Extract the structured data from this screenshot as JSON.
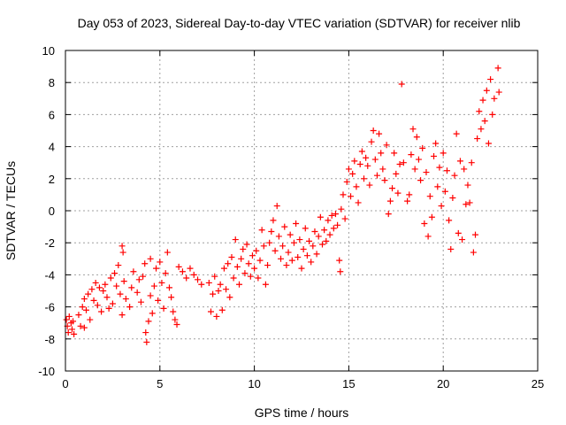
{
  "chart_data": {
    "type": "scatter",
    "title": "Day 053 of 2023, Sidereal Day-to-day VTEC variation (SDTVAR) for receiver nlib",
    "xlabel": "GPS time / hours",
    "ylabel": "SDTVAR / TECUs",
    "xlim": [
      0,
      25
    ],
    "ylim": [
      -10,
      10
    ],
    "xticks": [
      "0",
      "5",
      "10",
      "15",
      "20",
      "25"
    ],
    "yticks": [
      "-10",
      "-8",
      "-6",
      "-4",
      "-2",
      "0",
      "2",
      "4",
      "6",
      "8",
      "10"
    ],
    "grid": true,
    "marker": "plus",
    "colors": {
      "series": "#ff0000",
      "grid": "#a0a0a0",
      "axes": "#000000"
    },
    "series": [
      {
        "name": "SDTVAR",
        "points": [
          [
            0.05,
            -6.8
          ],
          [
            0.1,
            -7.2
          ],
          [
            0.15,
            -7.6
          ],
          [
            0.2,
            -6.6
          ],
          [
            0.3,
            -7.0
          ],
          [
            0.35,
            -7.4
          ],
          [
            0.4,
            -6.9
          ],
          [
            0.45,
            -7.7
          ],
          [
            0.7,
            -6.5
          ],
          [
            0.8,
            -7.2
          ],
          [
            0.9,
            -6.0
          ],
          [
            1.0,
            -5.5
          ],
          [
            1.0,
            -7.3
          ],
          [
            1.1,
            -6.2
          ],
          [
            1.2,
            -5.2
          ],
          [
            1.3,
            -6.8
          ],
          [
            1.4,
            -4.9
          ],
          [
            1.5,
            -5.6
          ],
          [
            1.6,
            -4.5
          ],
          [
            1.7,
            -5.9
          ],
          [
            1.8,
            -4.8
          ],
          [
            1.9,
            -6.3
          ],
          [
            2.0,
            -5.0
          ],
          [
            2.1,
            -4.6
          ],
          [
            2.2,
            -5.4
          ],
          [
            2.3,
            -6.1
          ],
          [
            2.4,
            -4.2
          ],
          [
            2.5,
            -5.8
          ],
          [
            2.6,
            -3.9
          ],
          [
            2.7,
            -4.7
          ],
          [
            2.8,
            -3.4
          ],
          [
            2.9,
            -5.2
          ],
          [
            3.0,
            -2.2
          ],
          [
            3.05,
            -2.6
          ],
          [
            3.0,
            -6.5
          ],
          [
            3.1,
            -4.4
          ],
          [
            3.2,
            -5.5
          ],
          [
            3.4,
            -6.0
          ],
          [
            3.5,
            -4.8
          ],
          [
            3.6,
            -3.8
          ],
          [
            3.8,
            -5.1
          ],
          [
            3.9,
            -4.3
          ],
          [
            4.0,
            -5.7
          ],
          [
            4.1,
            -4.1
          ],
          [
            4.2,
            -3.3
          ],
          [
            4.25,
            -7.6
          ],
          [
            4.3,
            -8.2
          ],
          [
            4.4,
            -6.9
          ],
          [
            4.5,
            -3.0
          ],
          [
            4.5,
            -5.3
          ],
          [
            4.6,
            -6.4
          ],
          [
            4.7,
            -4.7
          ],
          [
            4.8,
            -3.6
          ],
          [
            4.9,
            -5.6
          ],
          [
            5.0,
            -3.2
          ],
          [
            5.1,
            -4.5
          ],
          [
            5.2,
            -6.1
          ],
          [
            5.3,
            -3.9
          ],
          [
            5.4,
            -2.6
          ],
          [
            5.5,
            -4.8
          ],
          [
            5.6,
            -5.4
          ],
          [
            5.7,
            -6.3
          ],
          [
            5.8,
            -6.8
          ],
          [
            5.9,
            -7.1
          ],
          [
            6.0,
            -3.5
          ],
          [
            6.2,
            -3.8
          ],
          [
            6.4,
            -4.2
          ],
          [
            6.6,
            -3.6
          ],
          [
            6.8,
            -4.0
          ],
          [
            7.0,
            -4.3
          ],
          [
            7.2,
            -4.6
          ],
          [
            7.6,
            -4.5
          ],
          [
            7.7,
            -6.3
          ],
          [
            7.8,
            -5.2
          ],
          [
            7.9,
            -4.1
          ],
          [
            8.0,
            -6.6
          ],
          [
            8.1,
            -5.0
          ],
          [
            8.2,
            -4.6
          ],
          [
            8.3,
            -6.2
          ],
          [
            8.4,
            -3.6
          ],
          [
            8.5,
            -4.9
          ],
          [
            8.6,
            -3.3
          ],
          [
            8.7,
            -5.4
          ],
          [
            8.8,
            -2.9
          ],
          [
            8.9,
            -4.2
          ],
          [
            9.0,
            -1.8
          ],
          [
            9.1,
            -3.5
          ],
          [
            9.2,
            -4.6
          ],
          [
            9.3,
            -3.0
          ],
          [
            9.4,
            -2.4
          ],
          [
            9.5,
            -3.9
          ],
          [
            9.6,
            -2.1
          ],
          [
            9.7,
            -3.3
          ],
          [
            9.8,
            -4.1
          ],
          [
            9.9,
            -2.8
          ],
          [
            10.0,
            -3.6
          ],
          [
            10.1,
            -2.5
          ],
          [
            10.2,
            -4.2
          ],
          [
            10.3,
            -3.1
          ],
          [
            10.4,
            -1.2
          ],
          [
            10.5,
            -2.2
          ],
          [
            10.6,
            -4.6
          ],
          [
            10.7,
            -3.4
          ],
          [
            10.8,
            -2.0
          ],
          [
            10.9,
            -1.3
          ],
          [
            11.0,
            -0.6
          ],
          [
            11.1,
            -2.5
          ],
          [
            11.2,
            0.3
          ],
          [
            11.3,
            -1.6
          ],
          [
            11.4,
            -3.0
          ],
          [
            11.5,
            -2.2
          ],
          [
            11.6,
            -1.0
          ],
          [
            11.7,
            -3.4
          ],
          [
            11.8,
            -2.6
          ],
          [
            11.9,
            -1.5
          ],
          [
            12.0,
            -3.1
          ],
          [
            12.1,
            -2.0
          ],
          [
            12.2,
            -0.8
          ],
          [
            12.3,
            -2.9
          ],
          [
            12.4,
            -1.8
          ],
          [
            12.5,
            -3.6
          ],
          [
            12.6,
            -2.4
          ],
          [
            12.7,
            -1.1
          ],
          [
            12.8,
            -2.8
          ],
          [
            12.9,
            -1.9
          ],
          [
            13.0,
            -3.2
          ],
          [
            13.1,
            -2.2
          ],
          [
            13.2,
            -1.3
          ],
          [
            13.3,
            -2.7
          ],
          [
            13.4,
            -1.6
          ],
          [
            13.5,
            -0.4
          ],
          [
            13.6,
            -2.1
          ],
          [
            13.7,
            -1.2
          ],
          [
            13.8,
            -1.9
          ],
          [
            13.9,
            -0.6
          ],
          [
            14.0,
            -1.5
          ],
          [
            14.1,
            -0.3
          ],
          [
            14.2,
            -1.1
          ],
          [
            14.3,
            -0.2
          ],
          [
            14.4,
            -0.9
          ],
          [
            14.5,
            -3.1
          ],
          [
            14.55,
            -3.8
          ],
          [
            14.6,
            0.1
          ],
          [
            14.7,
            1.0
          ],
          [
            14.8,
            -0.5
          ],
          [
            14.9,
            1.8
          ],
          [
            15.0,
            2.6
          ],
          [
            15.1,
            0.9
          ],
          [
            15.2,
            2.3
          ],
          [
            15.3,
            3.1
          ],
          [
            15.4,
            1.5
          ],
          [
            15.5,
            0.5
          ],
          [
            15.6,
            2.9
          ],
          [
            15.7,
            3.7
          ],
          [
            15.8,
            2.0
          ],
          [
            15.9,
            3.3
          ],
          [
            16.0,
            2.8
          ],
          [
            16.1,
            1.6
          ],
          [
            16.2,
            4.3
          ],
          [
            16.3,
            5.0
          ],
          [
            16.4,
            3.2
          ],
          [
            16.5,
            2.2
          ],
          [
            16.6,
            4.8
          ],
          [
            16.7,
            3.6
          ],
          [
            16.8,
            2.6
          ],
          [
            16.9,
            1.9
          ],
          [
            17.0,
            4.1
          ],
          [
            17.1,
            -0.2
          ],
          [
            17.2,
            0.6
          ],
          [
            17.3,
            1.4
          ],
          [
            17.4,
            3.6
          ],
          [
            17.5,
            2.3
          ],
          [
            17.6,
            1.1
          ],
          [
            17.7,
            2.9
          ],
          [
            17.8,
            7.9
          ],
          [
            17.9,
            3.0
          ],
          [
            18.1,
            0.6
          ],
          [
            18.2,
            1.0
          ],
          [
            18.3,
            3.5
          ],
          [
            18.4,
            5.1
          ],
          [
            18.5,
            2.6
          ],
          [
            18.6,
            4.6
          ],
          [
            18.7,
            3.2
          ],
          [
            18.8,
            1.9
          ],
          [
            18.9,
            3.9
          ],
          [
            19.0,
            -0.8
          ],
          [
            19.1,
            2.4
          ],
          [
            19.2,
            -1.6
          ],
          [
            19.3,
            0.9
          ],
          [
            19.4,
            -0.4
          ],
          [
            19.5,
            3.4
          ],
          [
            19.6,
            4.2
          ],
          [
            19.7,
            1.5
          ],
          [
            19.8,
            2.7
          ],
          [
            19.9,
            0.3
          ],
          [
            20.0,
            3.6
          ],
          [
            20.1,
            1.2
          ],
          [
            20.2,
            2.5
          ],
          [
            20.3,
            -0.6
          ],
          [
            20.4,
            -2.4
          ],
          [
            20.5,
            0.8
          ],
          [
            20.6,
            2.2
          ],
          [
            20.7,
            4.8
          ],
          [
            20.8,
            -1.4
          ],
          [
            20.9,
            3.1
          ],
          [
            21.0,
            -1.8
          ],
          [
            21.1,
            2.6
          ],
          [
            21.2,
            0.4
          ],
          [
            21.3,
            1.6
          ],
          [
            21.4,
            0.5
          ],
          [
            21.5,
            3.0
          ],
          [
            21.6,
            -2.6
          ],
          [
            21.7,
            -1.5
          ],
          [
            21.8,
            4.5
          ],
          [
            21.9,
            6.2
          ],
          [
            22.0,
            5.1
          ],
          [
            22.1,
            6.9
          ],
          [
            22.2,
            5.6
          ],
          [
            22.3,
            7.5
          ],
          [
            22.4,
            4.2
          ],
          [
            22.5,
            8.2
          ],
          [
            22.6,
            6.0
          ],
          [
            22.7,
            7.0
          ],
          [
            22.9,
            8.9
          ],
          [
            22.95,
            7.4
          ]
        ]
      }
    ]
  }
}
